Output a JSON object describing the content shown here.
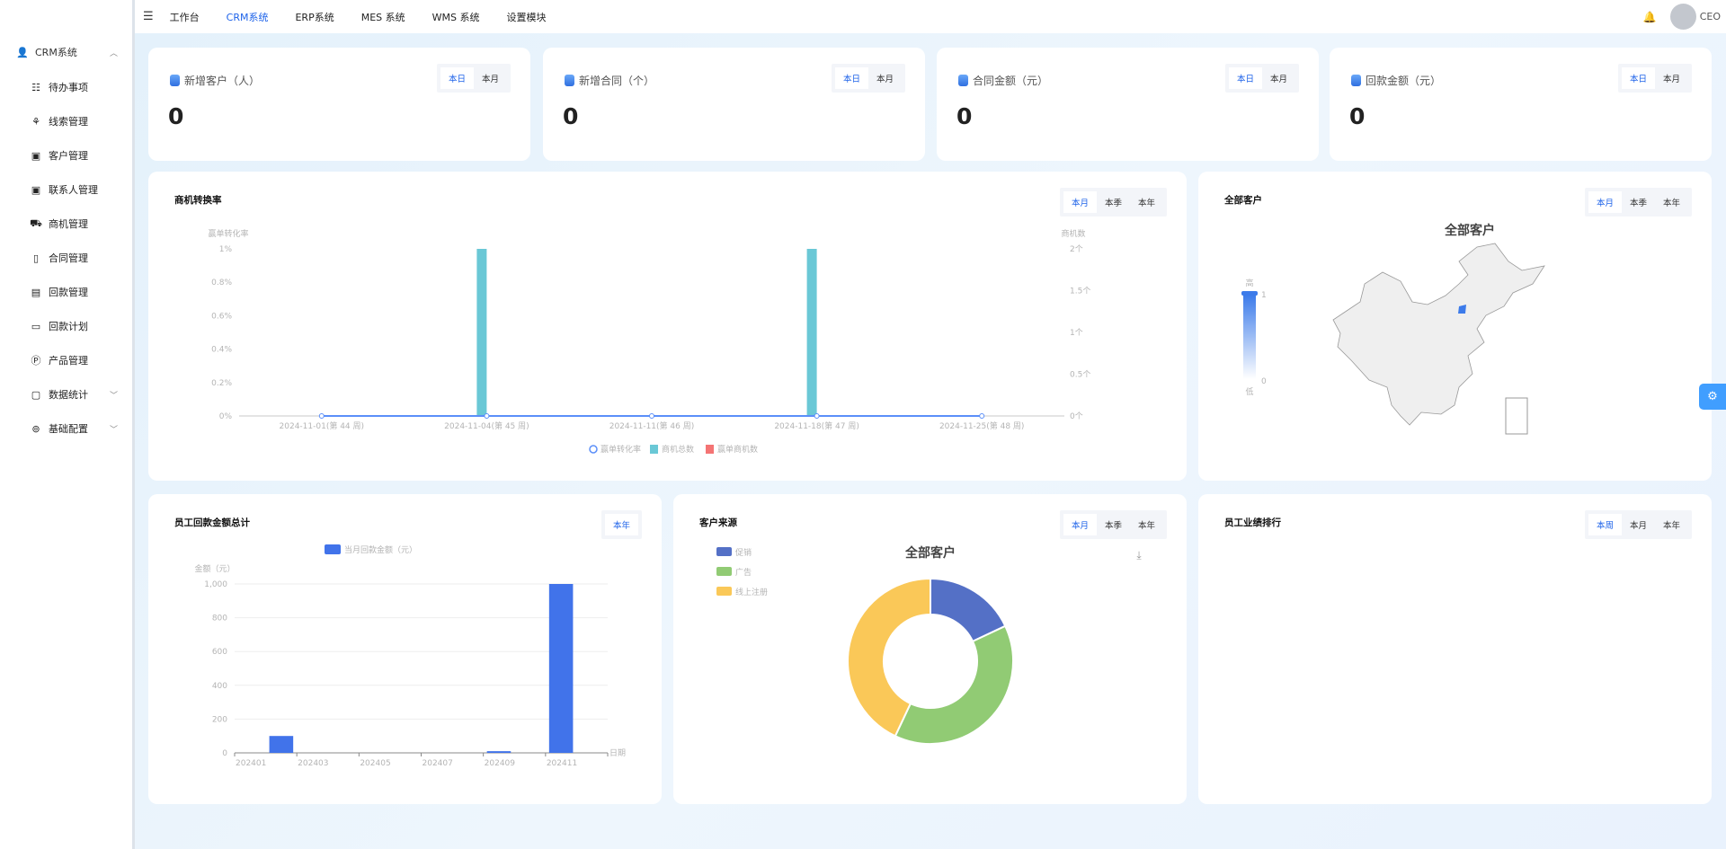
{
  "sidebar": {
    "group": {
      "label": "CRM系统",
      "icon": "user-icon"
    },
    "items": [
      {
        "label": "待办事项",
        "icon": "list-icon"
      },
      {
        "label": "线索管理",
        "icon": "clue-icon"
      },
      {
        "label": "客户管理",
        "icon": "contact-card-icon"
      },
      {
        "label": "联系人管理",
        "icon": "contact-card-icon"
      },
      {
        "label": "商机管理",
        "icon": "bus-icon"
      },
      {
        "label": "合同管理",
        "icon": "contract-icon"
      },
      {
        "label": "回款管理",
        "icon": "payment-icon"
      },
      {
        "label": "回款计划",
        "icon": "money-icon"
      },
      {
        "label": "产品管理",
        "icon": "product-p-icon"
      },
      {
        "label": "数据统计",
        "icon": "stats-icon",
        "expandable": true
      },
      {
        "label": "基础配置",
        "icon": "config-icon",
        "expandable": true
      }
    ]
  },
  "topbar": {
    "nav": [
      "工作台",
      "CRM系统",
      "ERP系统",
      "MES 系统",
      "WMS 系统",
      "设置模块"
    ],
    "active": "CRM系统",
    "user": "CEO"
  },
  "stats": [
    {
      "title": "新增客户（人）",
      "value": "0",
      "tabs": [
        "本日",
        "本月"
      ]
    },
    {
      "title": "新增合同（个）",
      "value": "0",
      "tabs": [
        "本日",
        "本月"
      ]
    },
    {
      "title": "合同金额（元）",
      "value": "0",
      "tabs": [
        "本日",
        "本月"
      ]
    },
    {
      "title": "回款金额（元）",
      "value": "0",
      "tabs": [
        "本日",
        "本月"
      ]
    }
  ],
  "panels": {
    "conversion": {
      "title": "商机转换率",
      "tabs": [
        "本月",
        "本季",
        "本年"
      ]
    },
    "map": {
      "title": "全部客户",
      "tabs": [
        "本月",
        "本季",
        "本年"
      ]
    },
    "payment": {
      "title": "员工回款金额总计",
      "tabs": [
        "本年"
      ]
    },
    "source": {
      "title": "客户来源",
      "tabs": [
        "本月",
        "本季",
        "本年"
      ]
    },
    "ranking": {
      "title": "员工业绩排行",
      "tabs": [
        "本周",
        "本月",
        "本年"
      ]
    }
  },
  "colors": {
    "accent": "#1e63e9",
    "teal": "#6ac8d6",
    "red": "#f47474",
    "blue": "#4173ea"
  },
  "chart_data": [
    {
      "type": "bar",
      "name": "conversion",
      "categories": [
        "2024-11-01(第 44 周)",
        "2024-11-04(第 45 周)",
        "2024-11-11(第 46 周)",
        "2024-11-18(第 47 周)",
        "2024-11-25(第 48 周)"
      ],
      "ylabel": "赢单转化率",
      "ylabel_right": "商机数",
      "yticks": [
        "0%",
        "0.2%",
        "0.4%",
        "0.6%",
        "0.8%",
        "1%"
      ],
      "yticks_right": [
        "0个",
        "0.5个",
        "1个",
        "1.5个",
        "2个"
      ],
      "ylim": [
        0,
        1
      ],
      "ylim_right": [
        0,
        2
      ],
      "series": [
        {
          "name": "赢单转化率",
          "type": "line",
          "values": [
            0,
            0,
            0,
            0,
            0
          ],
          "color": "#5b8ff9"
        },
        {
          "name": "商机总数",
          "type": "bar",
          "values": [
            0,
            2,
            0,
            2,
            0
          ],
          "color": "#6ac8d6"
        },
        {
          "name": "赢单商机数",
          "type": "bar",
          "values": [
            0,
            0,
            0,
            0,
            0
          ],
          "color": "#f47474"
        }
      ],
      "legend": "bottom"
    },
    {
      "type": "map",
      "name": "customers",
      "title": "全部客户",
      "visual_map": {
        "high_label": "高",
        "low_label": "低",
        "max": "1",
        "min": "0"
      },
      "highlighted": [
        "北京"
      ]
    },
    {
      "type": "bar",
      "name": "payment",
      "categories": [
        "202401",
        "202402",
        "202403",
        "202404",
        "202405",
        "202406",
        "202407",
        "202408",
        "202409",
        "202410",
        "202411",
        "202412"
      ],
      "xtick_labels": [
        "202401",
        "202403",
        "202405",
        "202407",
        "202409",
        "202411"
      ],
      "xlabel": "日期",
      "ylabel": "金额（元）",
      "yticks": [
        "0",
        "200",
        "400",
        "600",
        "800",
        "1,000"
      ],
      "ylim": [
        0,
        1000
      ],
      "series": [
        {
          "name": "当月回款金额（元）",
          "values": [
            0,
            100,
            0,
            0,
            0,
            0,
            0,
            0,
            10,
            0,
            1000,
            0
          ],
          "color": "#4173ea"
        }
      ],
      "legend": "top"
    },
    {
      "type": "pie",
      "name": "source",
      "title": "全部客户",
      "donut": true,
      "series": [
        {
          "name": "促销",
          "value": 18,
          "color": "#5470c6"
        },
        {
          "name": "广告",
          "value": 39,
          "color": "#91cb74"
        },
        {
          "name": "线上注册",
          "value": 43,
          "color": "#fac858"
        }
      ],
      "legend": "top-left"
    }
  ]
}
